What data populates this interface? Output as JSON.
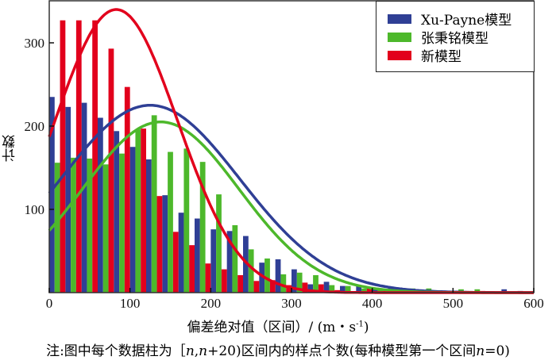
{
  "chart_data": {
    "type": "bar",
    "xlabel_main": "偏差绝对值（区间）/ (m・s",
    "xlabel_sup": "-1",
    "xlabel_end": ")",
    "ylabel": "计数",
    "xlim": [
      0,
      600
    ],
    "ylim": [
      0,
      350
    ],
    "xticks": [
      0,
      100,
      200,
      300,
      400,
      500,
      600
    ],
    "yticks": [
      100,
      200,
      300
    ],
    "bin_width": 20,
    "bin_starts": [
      0,
      20,
      40,
      60,
      80,
      100,
      120,
      140,
      160,
      180,
      200,
      220,
      240,
      260,
      280,
      300,
      320,
      340,
      360,
      380,
      400,
      420,
      440,
      460,
      480,
      500,
      520,
      540,
      560,
      580
    ],
    "legend_position": "top-right",
    "series": [
      {
        "name": "Xu-Payne模型",
        "color": "#2f3f95",
        "values": [
          235,
          223,
          228,
          210,
          194,
          175,
          160,
          117,
          96,
          89,
          76,
          74,
          68,
          36,
          40,
          28,
          10,
          13,
          8,
          8,
          4,
          6,
          2,
          2,
          1,
          2,
          1,
          1,
          4,
          2
        ],
        "fit": {
          "mean": 125,
          "sd": 111,
          "peak": 225
        }
      },
      {
        "name": "张秉铭模型",
        "color": "#4db82b",
        "values": [
          156,
          162,
          161,
          154,
          167,
          196,
          213,
          169,
          173,
          157,
          118,
          81,
          52,
          41,
          22,
          24,
          21,
          9,
          8,
          5,
          3,
          2,
          5,
          5,
          2,
          4,
          4,
          1,
          1,
          1
        ],
        "fit": {
          "mean": 138,
          "sd": 97,
          "peak": 205
        }
      },
      {
        "name": "新模型",
        "color": "#e2001c",
        "values": [
          327,
          327,
          327,
          293,
          247,
          197,
          116,
          73,
          57,
          35,
          28,
          21,
          14,
          15,
          9,
          12,
          10,
          3,
          1,
          5,
          2,
          0,
          1,
          0,
          0,
          2,
          2,
          0,
          1,
          1
        ],
        "fit": {
          "mean": 83,
          "sd": 76,
          "peak": 340
        }
      }
    ]
  },
  "note": {
    "part1": "注:图中每个数据柱为［",
    "n1": "n",
    "part2": ",",
    "n2": "n",
    "part3": "+20)区间内的样点个数(每种模型第一个区间",
    "n3": "n",
    "part4": "=0)"
  }
}
